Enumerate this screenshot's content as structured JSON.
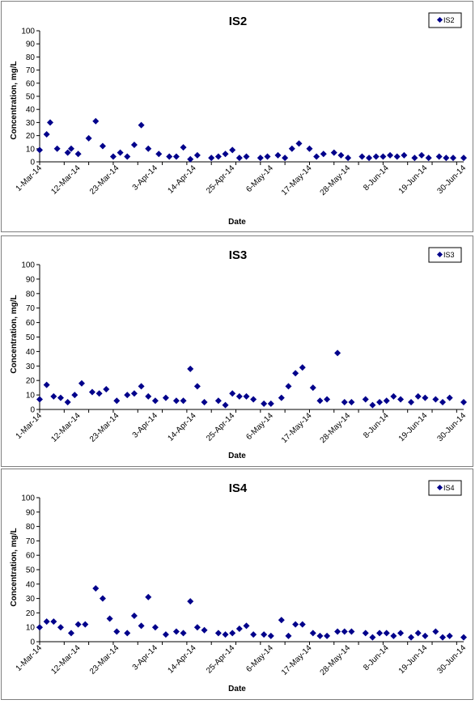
{
  "chart_data": [
    {
      "type": "scatter",
      "title": "IS2",
      "xlabel": "Date",
      "ylabel": "Concentration, mg/L",
      "ylim": [
        0,
        100
      ],
      "yticks": [
        0,
        10,
        20,
        30,
        40,
        50,
        60,
        70,
        80,
        90,
        100
      ],
      "xlim": [
        "2014-03-01",
        "2014-06-30"
      ],
      "xtick_labels": [
        "1-Mar-14",
        "12-Mar-14",
        "23-Mar-14",
        "3-Apr-14",
        "14-Apr-14",
        "25-Apr-14",
        "6-May-14",
        "17-May-14",
        "28-May-14",
        "8-Jun-14",
        "19-Jun-14",
        "30-Jun-14"
      ],
      "grid": false,
      "legend_position": "top-right",
      "marker_color": "#00008b",
      "series": [
        {
          "name": "IS2",
          "points": [
            [
              "2014-03-01",
              9
            ],
            [
              "2014-03-03",
              21
            ],
            [
              "2014-03-04",
              30
            ],
            [
              "2014-03-06",
              10
            ],
            [
              "2014-03-09",
              7
            ],
            [
              "2014-03-10",
              10
            ],
            [
              "2014-03-12",
              6
            ],
            [
              "2014-03-15",
              18
            ],
            [
              "2014-03-17",
              31
            ],
            [
              "2014-03-19",
              12
            ],
            [
              "2014-03-22",
              4
            ],
            [
              "2014-03-24",
              7
            ],
            [
              "2014-03-26",
              4
            ],
            [
              "2014-03-28",
              13
            ],
            [
              "2014-03-30",
              28
            ],
            [
              "2014-04-01",
              10
            ],
            [
              "2014-04-04",
              6
            ],
            [
              "2014-04-07",
              4
            ],
            [
              "2014-04-09",
              4
            ],
            [
              "2014-04-11",
              11
            ],
            [
              "2014-04-13",
              2
            ],
            [
              "2014-04-15",
              5
            ],
            [
              "2014-04-19",
              3
            ],
            [
              "2014-04-21",
              4
            ],
            [
              "2014-04-23",
              6
            ],
            [
              "2014-04-25",
              9
            ],
            [
              "2014-04-27",
              3
            ],
            [
              "2014-04-29",
              4
            ],
            [
              "2014-05-03",
              3
            ],
            [
              "2014-05-05",
              4
            ],
            [
              "2014-05-08",
              5
            ],
            [
              "2014-05-10",
              3
            ],
            [
              "2014-05-12",
              10
            ],
            [
              "2014-05-14",
              14
            ],
            [
              "2014-05-17",
              10
            ],
            [
              "2014-05-19",
              4
            ],
            [
              "2014-05-21",
              6
            ],
            [
              "2014-05-24",
              7
            ],
            [
              "2014-05-26",
              5
            ],
            [
              "2014-05-28",
              3
            ],
            [
              "2014-06-01",
              4
            ],
            [
              "2014-06-03",
              3
            ],
            [
              "2014-06-05",
              4
            ],
            [
              "2014-06-07",
              4
            ],
            [
              "2014-06-09",
              5
            ],
            [
              "2014-06-11",
              4
            ],
            [
              "2014-06-13",
              5
            ],
            [
              "2014-06-16",
              3
            ],
            [
              "2014-06-18",
              5
            ],
            [
              "2014-06-20",
              3
            ],
            [
              "2014-06-23",
              4
            ],
            [
              "2014-06-25",
              3
            ],
            [
              "2014-06-27",
              3
            ],
            [
              "2014-06-30",
              3
            ]
          ]
        }
      ]
    },
    {
      "type": "scatter",
      "title": "IS3",
      "xlabel": "Date",
      "ylabel": "Concentration, mg/L",
      "ylim": [
        0,
        100
      ],
      "yticks": [
        0,
        10,
        20,
        30,
        40,
        50,
        60,
        70,
        80,
        90,
        100
      ],
      "xlim": [
        "2014-03-01",
        "2014-06-30"
      ],
      "xtick_labels": [
        "1-Mar-14",
        "12-Mar-14",
        "23-Mar-14",
        "3-Apr-14",
        "14-Apr-14",
        "25-Apr-14",
        "6-May-14",
        "17-May-14",
        "28-May-14",
        "8-Jun-14",
        "19-Jun-14",
        "30-Jun-14"
      ],
      "grid": false,
      "legend_position": "top-right",
      "marker_color": "#00008b",
      "series": [
        {
          "name": "IS3",
          "points": [
            [
              "2014-03-01",
              7
            ],
            [
              "2014-03-03",
              17
            ],
            [
              "2014-03-05",
              9
            ],
            [
              "2014-03-07",
              8
            ],
            [
              "2014-03-09",
              5
            ],
            [
              "2014-03-11",
              10
            ],
            [
              "2014-03-13",
              18
            ],
            [
              "2014-03-16",
              12
            ],
            [
              "2014-03-18",
              11
            ],
            [
              "2014-03-20",
              14
            ],
            [
              "2014-03-23",
              6
            ],
            [
              "2014-03-26",
              10
            ],
            [
              "2014-03-28",
              11
            ],
            [
              "2014-03-30",
              16
            ],
            [
              "2014-04-01",
              9
            ],
            [
              "2014-04-03",
              6
            ],
            [
              "2014-04-06",
              8
            ],
            [
              "2014-04-09",
              6
            ],
            [
              "2014-04-11",
              6
            ],
            [
              "2014-04-13",
              28
            ],
            [
              "2014-04-15",
              16
            ],
            [
              "2014-04-17",
              5
            ],
            [
              "2014-04-21",
              6
            ],
            [
              "2014-04-23",
              3
            ],
            [
              "2014-04-25",
              11
            ],
            [
              "2014-04-27",
              9
            ],
            [
              "2014-04-29",
              9
            ],
            [
              "2014-05-01",
              7
            ],
            [
              "2014-05-04",
              4
            ],
            [
              "2014-05-06",
              4
            ],
            [
              "2014-05-09",
              8
            ],
            [
              "2014-05-11",
              16
            ],
            [
              "2014-05-13",
              25
            ],
            [
              "2014-05-15",
              29
            ],
            [
              "2014-05-18",
              15
            ],
            [
              "2014-05-20",
              6
            ],
            [
              "2014-05-22",
              7
            ],
            [
              "2014-05-25",
              39
            ],
            [
              "2014-05-27",
              5
            ],
            [
              "2014-05-29",
              5
            ],
            [
              "2014-06-02",
              7
            ],
            [
              "2014-06-04",
              3
            ],
            [
              "2014-06-06",
              5
            ],
            [
              "2014-06-08",
              6
            ],
            [
              "2014-06-10",
              9
            ],
            [
              "2014-06-12",
              7
            ],
            [
              "2014-06-15",
              5
            ],
            [
              "2014-06-17",
              9
            ],
            [
              "2014-06-19",
              8
            ],
            [
              "2014-06-22",
              7
            ],
            [
              "2014-06-24",
              5
            ],
            [
              "2014-06-26",
              8
            ],
            [
              "2014-06-30",
              5
            ]
          ]
        }
      ]
    },
    {
      "type": "scatter",
      "title": "IS4",
      "xlabel": "Date",
      "ylabel": "Concentration, mg/L",
      "ylim": [
        0,
        100
      ],
      "yticks": [
        0,
        10,
        20,
        30,
        40,
        50,
        60,
        70,
        80,
        90,
        100
      ],
      "xlim": [
        "2014-03-01",
        "2014-06-30"
      ],
      "xtick_labels": [
        "1-Mar-14",
        "12-Mar-14",
        "23-Mar-14",
        "3-Apr-14",
        "14-Apr-14",
        "25-Apr-14",
        "6-May-14",
        "17-May-14",
        "28-May-14",
        "8-Jun-14",
        "19-Jun-14",
        "30-Jun-14"
      ],
      "grid": false,
      "legend_position": "top-right",
      "marker_color": "#00008b",
      "series": [
        {
          "name": "IS4",
          "points": [
            [
              "2014-03-01",
              10
            ],
            [
              "2014-03-03",
              14
            ],
            [
              "2014-03-05",
              14
            ],
            [
              "2014-03-07",
              10
            ],
            [
              "2014-03-10",
              6
            ],
            [
              "2014-03-12",
              12
            ],
            [
              "2014-03-14",
              12
            ],
            [
              "2014-03-17",
              37
            ],
            [
              "2014-03-19",
              30
            ],
            [
              "2014-03-21",
              16
            ],
            [
              "2014-03-23",
              7
            ],
            [
              "2014-03-26",
              6
            ],
            [
              "2014-03-28",
              18
            ],
            [
              "2014-03-30",
              11
            ],
            [
              "2014-04-01",
              31
            ],
            [
              "2014-04-03",
              10
            ],
            [
              "2014-04-06",
              5
            ],
            [
              "2014-04-09",
              7
            ],
            [
              "2014-04-11",
              6
            ],
            [
              "2014-04-13",
              28
            ],
            [
              "2014-04-15",
              10
            ],
            [
              "2014-04-17",
              8
            ],
            [
              "2014-04-21",
              6
            ],
            [
              "2014-04-23",
              5
            ],
            [
              "2014-04-25",
              6
            ],
            [
              "2014-04-27",
              9
            ],
            [
              "2014-04-29",
              11
            ],
            [
              "2014-05-01",
              5
            ],
            [
              "2014-05-04",
              5
            ],
            [
              "2014-05-06",
              4
            ],
            [
              "2014-05-09",
              15
            ],
            [
              "2014-05-11",
              4
            ],
            [
              "2014-05-13",
              12
            ],
            [
              "2014-05-15",
              12
            ],
            [
              "2014-05-18",
              6
            ],
            [
              "2014-05-20",
              4
            ],
            [
              "2014-05-22",
              4
            ],
            [
              "2014-05-25",
              7
            ],
            [
              "2014-05-27",
              7
            ],
            [
              "2014-05-29",
              7
            ],
            [
              "2014-06-02",
              6
            ],
            [
              "2014-06-04",
              3
            ],
            [
              "2014-06-06",
              6
            ],
            [
              "2014-06-08",
              6
            ],
            [
              "2014-06-10",
              4
            ],
            [
              "2014-06-12",
              6
            ],
            [
              "2014-06-15",
              3
            ],
            [
              "2014-06-17",
              6
            ],
            [
              "2014-06-19",
              4
            ],
            [
              "2014-06-22",
              7
            ],
            [
              "2014-06-24",
              3
            ],
            [
              "2014-06-26",
              4
            ],
            [
              "2014-06-30",
              3
            ]
          ]
        }
      ]
    }
  ]
}
